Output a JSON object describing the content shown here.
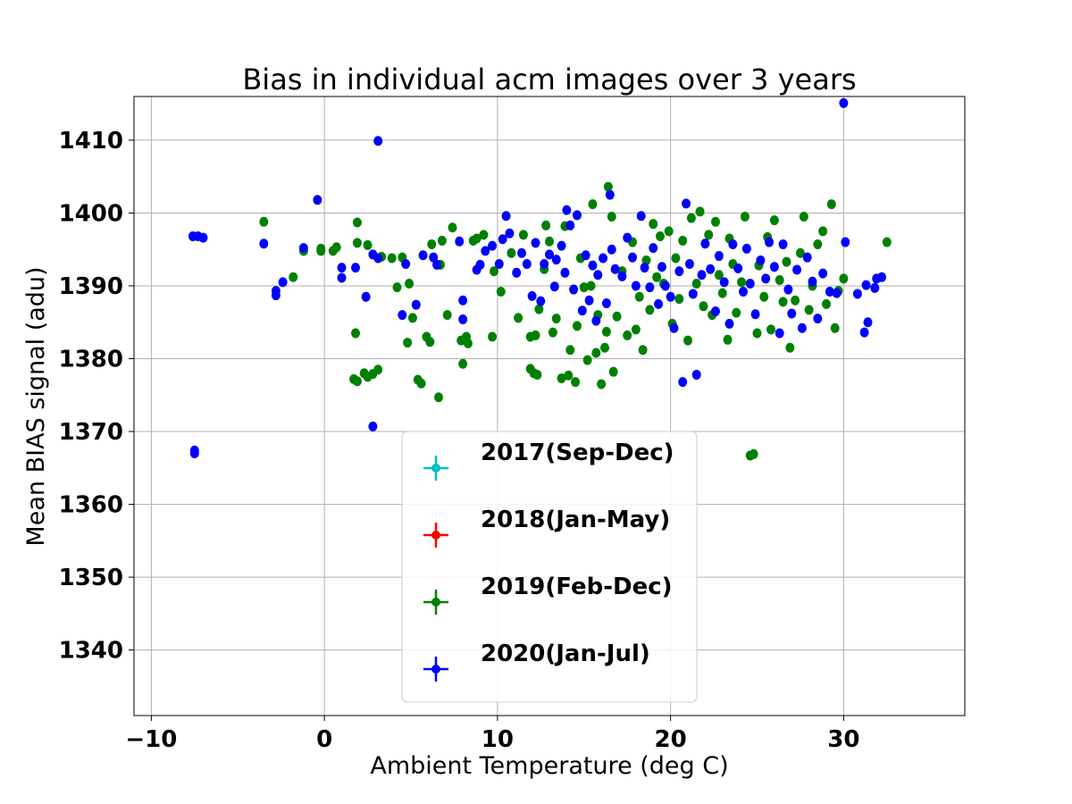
{
  "chart_data": {
    "type": "scatter",
    "title": "Bias in individual acm images over 3 years",
    "xlabel": "Ambient Temperature (deg C)",
    "ylabel": "Mean BIAS signal (adu)",
    "xlim": [
      -11,
      37
    ],
    "ylim": [
      1331,
      1416
    ],
    "x_ticks": [
      -10,
      0,
      10,
      20,
      30
    ],
    "x_tick_labels": [
      "−10",
      "0",
      "10",
      "20",
      "30"
    ],
    "y_ticks": [
      1340,
      1350,
      1360,
      1370,
      1380,
      1390,
      1400,
      1410
    ],
    "y_tick_labels": [
      "1340",
      "1350",
      "1360",
      "1370",
      "1380",
      "1390",
      "1400",
      "1410"
    ],
    "grid": true,
    "legend_position": "lower-center",
    "series": [
      {
        "name": "2017(Sep-Dec)",
        "color": "#00bfbf",
        "points": []
      },
      {
        "name": "2018(Jan-May)",
        "color": "#ff0000",
        "points": []
      },
      {
        "name": "2019(Feb-Dec)",
        "color": "#008000",
        "points": [
          [
            -3.5,
            1398.8
          ],
          [
            -1.8,
            1391.2
          ],
          [
            -1.2,
            1394.8
          ],
          [
            -0.2,
            1395.1
          ],
          [
            -0.2,
            1394.8
          ],
          [
            0.5,
            1394.8
          ],
          [
            0.7,
            1395.3
          ],
          [
            1.7,
            1377.2
          ],
          [
            1.9,
            1376.9
          ],
          [
            1.8,
            1383.5
          ],
          [
            1.9,
            1398.7
          ],
          [
            1.9,
            1395.9
          ],
          [
            2.3,
            1378.0
          ],
          [
            2.5,
            1377.5
          ],
          [
            2.8,
            1377.9
          ],
          [
            3.1,
            1378.5
          ],
          [
            2.5,
            1395.6
          ],
          [
            3.3,
            1394.0
          ],
          [
            3.9,
            1393.8
          ],
          [
            4.2,
            1389.8
          ],
          [
            4.5,
            1393.9
          ],
          [
            4.8,
            1382.2
          ],
          [
            4.9,
            1390.3
          ],
          [
            5.1,
            1385.6
          ],
          [
            5.4,
            1377.1
          ],
          [
            5.6,
            1376.6
          ],
          [
            5.9,
            1383.0
          ],
          [
            6.1,
            1382.3
          ],
          [
            6.2,
            1395.7
          ],
          [
            6.6,
            1374.7
          ],
          [
            6.7,
            1392.9
          ],
          [
            6.8,
            1396.2
          ],
          [
            7.1,
            1386.0
          ],
          [
            7.4,
            1398.0
          ],
          [
            7.9,
            1382.5
          ],
          [
            8.0,
            1379.3
          ],
          [
            8.2,
            1383.0
          ],
          [
            8.3,
            1382.1
          ],
          [
            8.6,
            1396.2
          ],
          [
            8.8,
            1396.5
          ],
          [
            9.2,
            1397.0
          ],
          [
            9.7,
            1383.0
          ],
          [
            9.8,
            1392.0
          ],
          [
            10.2,
            1389.2
          ],
          [
            10.8,
            1394.5
          ],
          [
            11.2,
            1385.6
          ],
          [
            11.5,
            1397.0
          ],
          [
            11.9,
            1378.6
          ],
          [
            12.1,
            1378.0
          ],
          [
            12.3,
            1377.8
          ],
          [
            11.9,
            1383.0
          ],
          [
            12.2,
            1383.2
          ],
          [
            12.4,
            1386.8
          ],
          [
            12.7,
            1392.3
          ],
          [
            12.8,
            1398.3
          ],
          [
            13.0,
            1396.1
          ],
          [
            13.2,
            1383.6
          ],
          [
            13.4,
            1385.5
          ],
          [
            13.7,
            1377.3
          ],
          [
            13.9,
            1398.2
          ],
          [
            14.1,
            1377.7
          ],
          [
            14.2,
            1381.2
          ],
          [
            14.5,
            1376.8
          ],
          [
            14.6,
            1384.5
          ],
          [
            14.8,
            1393.8
          ],
          [
            15.0,
            1389.8
          ],
          [
            15.2,
            1379.8
          ],
          [
            15.4,
            1390.0
          ],
          [
            15.5,
            1401.2
          ],
          [
            15.7,
            1380.8
          ],
          [
            15.8,
            1386.0
          ],
          [
            16.0,
            1376.5
          ],
          [
            16.2,
            1381.5
          ],
          [
            16.3,
            1383.7
          ],
          [
            16.4,
            1403.6
          ],
          [
            16.6,
            1399.5
          ],
          [
            16.7,
            1378.2
          ],
          [
            16.9,
            1385.8
          ],
          [
            17.2,
            1392.0
          ],
          [
            17.5,
            1383.2
          ],
          [
            17.8,
            1396.0
          ],
          [
            18.0,
            1384.0
          ],
          [
            18.2,
            1388.5
          ],
          [
            18.4,
            1381.2
          ],
          [
            18.6,
            1393.5
          ],
          [
            18.8,
            1386.7
          ],
          [
            19.0,
            1398.5
          ],
          [
            19.2,
            1391.2
          ],
          [
            19.4,
            1396.8
          ],
          [
            19.6,
            1390.3
          ],
          [
            19.9,
            1397.5
          ],
          [
            20.1,
            1384.8
          ],
          [
            20.3,
            1393.8
          ],
          [
            20.5,
            1388.2
          ],
          [
            20.7,
            1396.2
          ],
          [
            21.0,
            1382.5
          ],
          [
            21.2,
            1399.3
          ],
          [
            21.5,
            1390.3
          ],
          [
            21.7,
            1400.2
          ],
          [
            21.9,
            1387.2
          ],
          [
            22.2,
            1397.0
          ],
          [
            22.4,
            1386.0
          ],
          [
            22.6,
            1398.8
          ],
          [
            22.8,
            1391.5
          ],
          [
            23.0,
            1389.0
          ],
          [
            23.3,
            1382.6
          ],
          [
            23.4,
            1396.5
          ],
          [
            23.6,
            1393.0
          ],
          [
            23.8,
            1386.3
          ],
          [
            24.1,
            1390.5
          ],
          [
            24.3,
            1399.5
          ],
          [
            24.6,
            1366.7
          ],
          [
            24.8,
            1366.9
          ],
          [
            25.0,
            1383.5
          ],
          [
            25.1,
            1392.8
          ],
          [
            25.4,
            1388.5
          ],
          [
            25.6,
            1396.7
          ],
          [
            25.8,
            1384.0
          ],
          [
            26.0,
            1399.0
          ],
          [
            26.3,
            1390.8
          ],
          [
            26.5,
            1387.8
          ],
          [
            26.7,
            1393.3
          ],
          [
            26.9,
            1381.5
          ],
          [
            27.2,
            1388.0
          ],
          [
            27.5,
            1394.5
          ],
          [
            27.7,
            1399.5
          ],
          [
            28.0,
            1386.7
          ],
          [
            28.2,
            1390.0
          ],
          [
            28.5,
            1395.7
          ],
          [
            28.8,
            1397.5
          ],
          [
            29.0,
            1387.5
          ],
          [
            29.3,
            1401.2
          ],
          [
            29.5,
            1384.2
          ],
          [
            29.7,
            1389.3
          ],
          [
            30.0,
            1391.0
          ],
          [
            32.5,
            1396.0
          ]
        ]
      },
      {
        "name": "2020(Jan-Jul)",
        "color": "#0000ff",
        "points": [
          [
            -7.6,
            1396.8
          ],
          [
            -7.3,
            1396.8
          ],
          [
            -7.0,
            1396.6
          ],
          [
            -7.5,
            1367.4
          ],
          [
            -7.5,
            1367.0
          ],
          [
            -3.5,
            1395.8
          ],
          [
            -2.8,
            1389.3
          ],
          [
            -2.8,
            1388.7
          ],
          [
            -2.4,
            1390.5
          ],
          [
            -1.2,
            1395.2
          ],
          [
            -0.4,
            1401.8
          ],
          [
            1.0,
            1392.5
          ],
          [
            1.0,
            1391.1
          ],
          [
            1.8,
            1392.5
          ],
          [
            2.4,
            1388.5
          ],
          [
            2.8,
            1394.3
          ],
          [
            3.1,
            1393.8
          ],
          [
            2.8,
            1370.7
          ],
          [
            3.1,
            1409.9
          ],
          [
            4.5,
            1386.0
          ],
          [
            4.7,
            1393.0
          ],
          [
            5.3,
            1387.4
          ],
          [
            5.7,
            1394.2
          ],
          [
            6.3,
            1393.9
          ],
          [
            6.5,
            1392.9
          ],
          [
            7.8,
            1396.1
          ],
          [
            8.0,
            1388.0
          ],
          [
            8.0,
            1385.4
          ],
          [
            8.8,
            1392.2
          ],
          [
            9.0,
            1392.9
          ],
          [
            9.3,
            1394.8
          ],
          [
            9.7,
            1395.5
          ],
          [
            10.1,
            1393.0
          ],
          [
            10.3,
            1396.4
          ],
          [
            10.5,
            1399.6
          ],
          [
            10.7,
            1397.2
          ],
          [
            11.1,
            1391.8
          ],
          [
            11.4,
            1394.5
          ],
          [
            11.7,
            1393.0
          ],
          [
            12.0,
            1388.6
          ],
          [
            12.2,
            1395.9
          ],
          [
            12.5,
            1387.9
          ],
          [
            12.7,
            1393.0
          ],
          [
            13.0,
            1394.3
          ],
          [
            13.3,
            1389.9
          ],
          [
            13.4,
            1393.6
          ],
          [
            13.7,
            1395.5
          ],
          [
            13.9,
            1391.8
          ],
          [
            14.0,
            1400.4
          ],
          [
            14.2,
            1398.3
          ],
          [
            14.4,
            1389.5
          ],
          [
            14.6,
            1399.7
          ],
          [
            14.9,
            1386.6
          ],
          [
            15.1,
            1394.2
          ],
          [
            15.3,
            1388.0
          ],
          [
            15.5,
            1392.8
          ],
          [
            15.7,
            1385.2
          ],
          [
            15.8,
            1391.5
          ],
          [
            16.1,
            1393.8
          ],
          [
            16.3,
            1387.6
          ],
          [
            16.5,
            1402.5
          ],
          [
            16.6,
            1395.0
          ],
          [
            16.8,
            1392.3
          ],
          [
            17.2,
            1391.3
          ],
          [
            17.5,
            1396.6
          ],
          [
            17.8,
            1393.9
          ],
          [
            18.0,
            1390.0
          ],
          [
            18.3,
            1399.6
          ],
          [
            18.5,
            1392.5
          ],
          [
            18.8,
            1389.8
          ],
          [
            19.0,
            1395.2
          ],
          [
            19.3,
            1387.5
          ],
          [
            19.5,
            1392.6
          ],
          [
            19.7,
            1390.0
          ],
          [
            20.0,
            1388.5
          ],
          [
            20.2,
            1384.2
          ],
          [
            20.5,
            1392.0
          ],
          [
            20.7,
            1376.8
          ],
          [
            20.9,
            1401.3
          ],
          [
            21.1,
            1393.0
          ],
          [
            21.3,
            1388.9
          ],
          [
            21.5,
            1377.8
          ],
          [
            21.8,
            1391.5
          ],
          [
            22.0,
            1395.8
          ],
          [
            22.3,
            1392.3
          ],
          [
            22.6,
            1386.5
          ],
          [
            22.8,
            1394.1
          ],
          [
            23.1,
            1390.5
          ],
          [
            23.4,
            1384.8
          ],
          [
            23.6,
            1395.7
          ],
          [
            23.9,
            1392.4
          ],
          [
            24.2,
            1389.2
          ],
          [
            24.4,
            1395.1
          ],
          [
            24.6,
            1390.3
          ],
          [
            24.9,
            1386.1
          ],
          [
            25.2,
            1393.5
          ],
          [
            25.5,
            1391.0
          ],
          [
            25.7,
            1396.0
          ],
          [
            26.0,
            1392.6
          ],
          [
            26.3,
            1383.5
          ],
          [
            26.5,
            1395.7
          ],
          [
            26.8,
            1389.5
          ],
          [
            27.0,
            1386.2
          ],
          [
            27.3,
            1392.2
          ],
          [
            27.6,
            1384.2
          ],
          [
            27.9,
            1393.9
          ],
          [
            28.2,
            1390.6
          ],
          [
            28.5,
            1385.5
          ],
          [
            28.8,
            1391.7
          ],
          [
            29.2,
            1389.2
          ],
          [
            29.6,
            1389.0
          ],
          [
            30.0,
            1415.1
          ],
          [
            30.1,
            1396.0
          ],
          [
            30.8,
            1388.9
          ],
          [
            31.2,
            1383.6
          ],
          [
            31.3,
            1390.1
          ],
          [
            31.4,
            1385.0
          ],
          [
            31.8,
            1389.7
          ],
          [
            31.9,
            1391.0
          ],
          [
            32.2,
            1391.2
          ]
        ]
      }
    ]
  }
}
